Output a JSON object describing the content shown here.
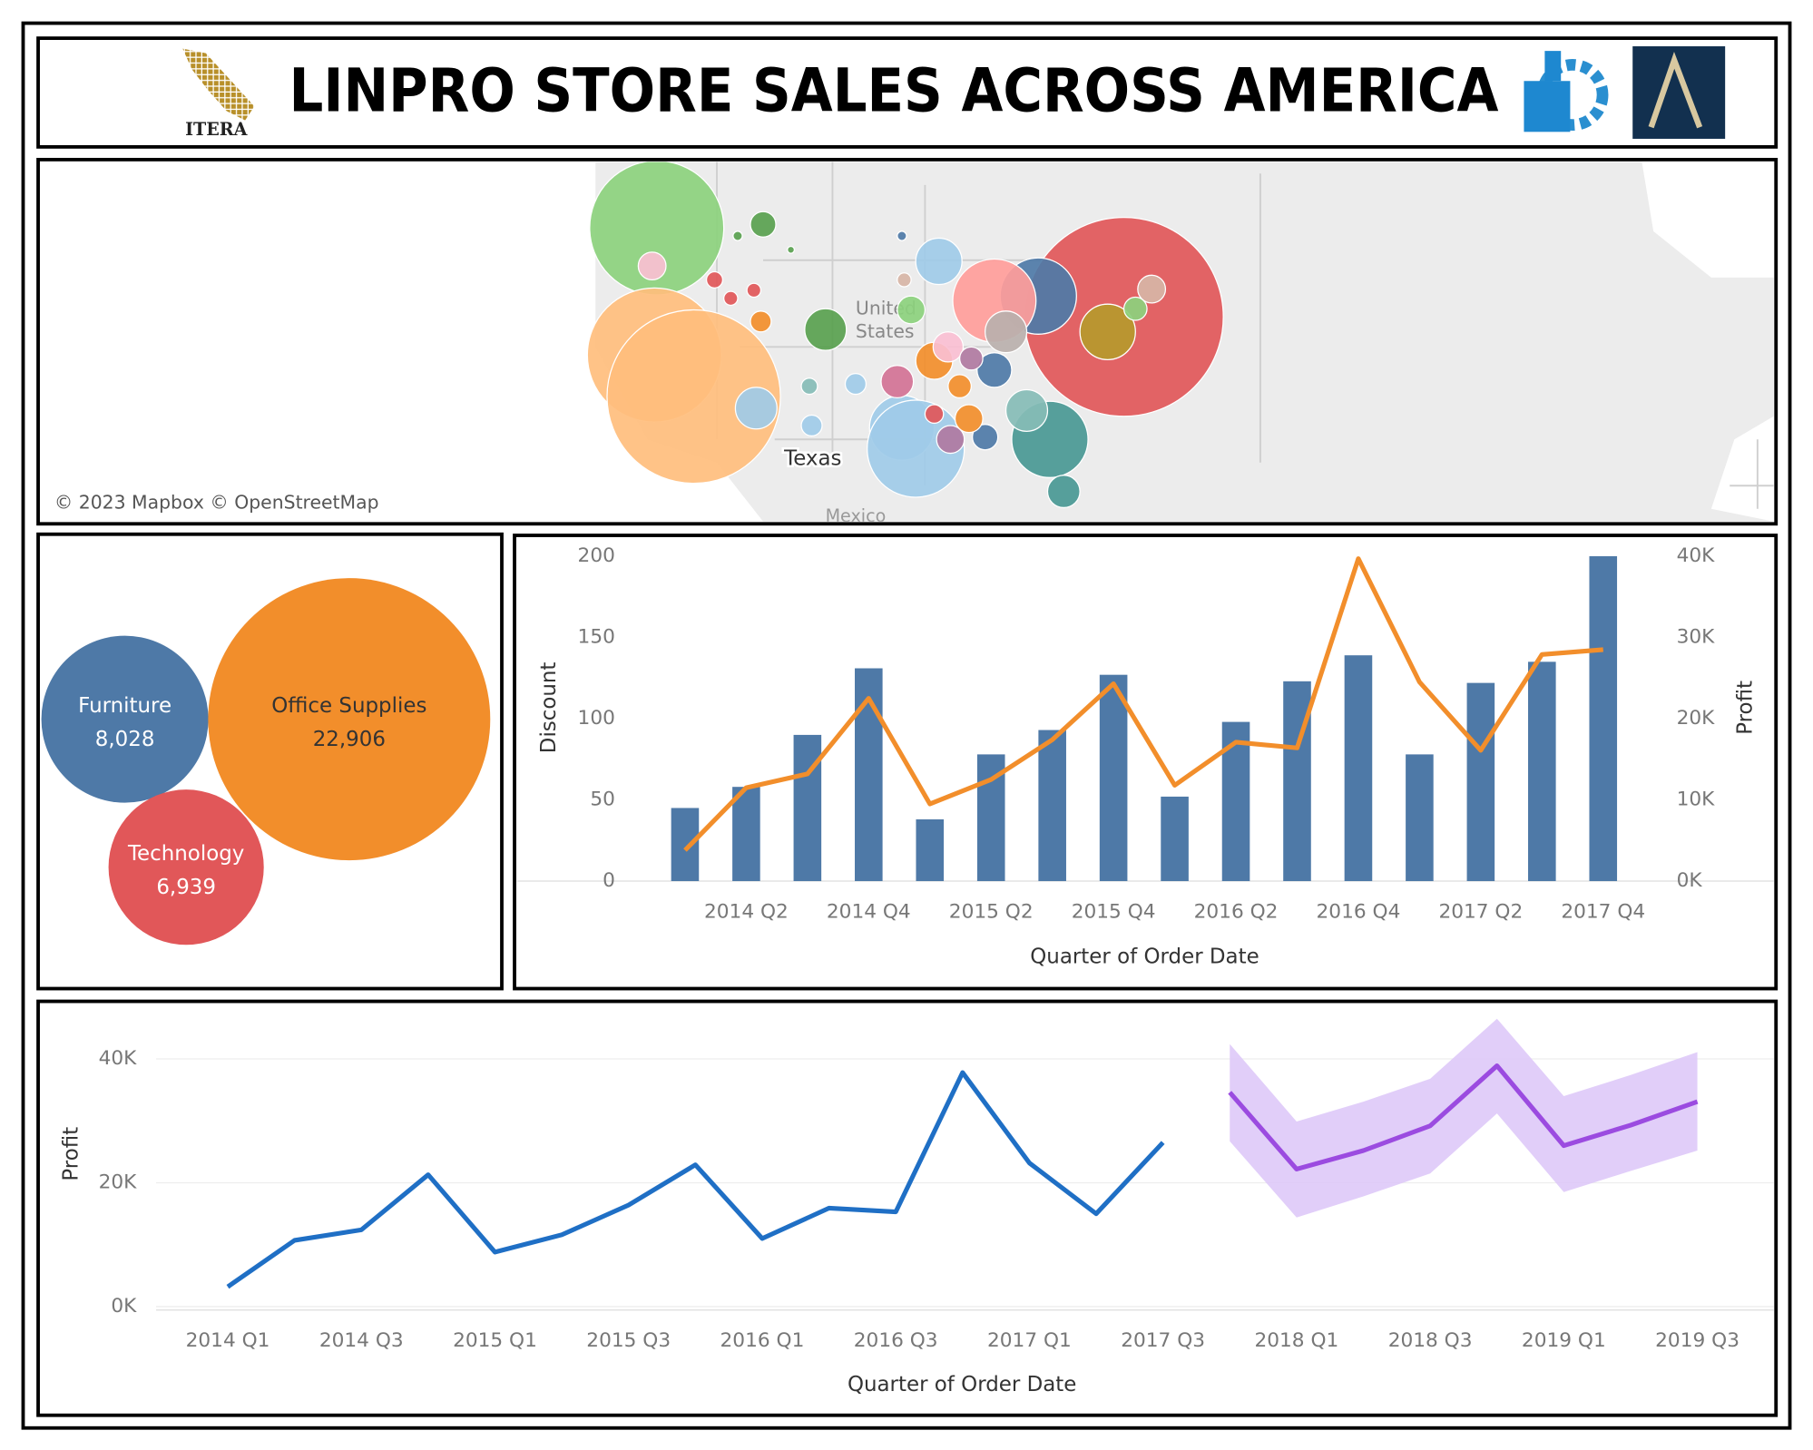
{
  "header": {
    "title": "LINPRO STORE SALES ACROSS AMERICA",
    "logo_text": "ITERA"
  },
  "map": {
    "labels": [
      "United",
      "States",
      "Texas",
      "Mexico"
    ],
    "attribution": "© 2023 Mapbox © OpenStreetMap"
  },
  "chart_data": [
    {
      "type": "packed_bubble",
      "categories": [
        "Furniture",
        "Office Supplies",
        "Technology"
      ],
      "values": [
        8028,
        22906,
        6939
      ],
      "value_labels": [
        "8,028",
        "22,906",
        "6,939"
      ],
      "colors": [
        "#4e79a7",
        "#f28e2b",
        "#e15759"
      ]
    },
    {
      "type": "bar_line",
      "x_label": "Quarter of Order Date",
      "y_label": "Discount",
      "y2_label": "Profit",
      "categories": [
        null,
        "2014 Q2",
        null,
        "2014 Q4",
        null,
        "2015 Q2",
        null,
        "2015 Q4",
        null,
        "2016 Q2",
        null,
        "2016 Q4",
        null,
        "2017 Q2",
        null,
        "2017 Q4"
      ],
      "series": [
        {
          "type": "bar",
          "color": "#4e79a7",
          "values": [
            45,
            58,
            90,
            131,
            38,
            78,
            93,
            127,
            52,
            98,
            123,
            139,
            78,
            122,
            135,
            200
          ]
        },
        {
          "type": "line",
          "axis": "y2",
          "color": "#f28e2b",
          "values": [
            3800,
            11500,
            13200,
            22500,
            9500,
            12500,
            17400,
            24300,
            11800,
            17100,
            16400,
            39700,
            24500,
            16100,
            27900,
            28500
          ]
        }
      ],
      "ylim": [
        0,
        205
      ],
      "yticks": [
        0,
        50,
        100,
        150,
        200
      ],
      "y2lim": [
        0,
        41000
      ],
      "y2ticks": [
        {
          "value": 0,
          "label": "0K"
        },
        {
          "value": 10000,
          "label": "10K"
        },
        {
          "value": 20000,
          "label": "20K"
        },
        {
          "value": 30000,
          "label": "30K"
        },
        {
          "value": 40000,
          "label": "40K"
        }
      ]
    },
    {
      "type": "line_forecast",
      "x_label": "Quarter of Order Date",
      "y_label": "Profit",
      "categories": [
        "2014 Q1",
        null,
        "2014 Q3",
        null,
        "2015 Q1",
        null,
        "2015 Q3",
        null,
        "2016 Q1",
        null,
        "2016 Q3",
        null,
        "2017 Q1",
        null,
        "2017 Q3",
        null,
        "2018 Q1",
        null,
        "2018 Q3",
        null,
        "2019 Q1",
        null,
        "2019 Q3"
      ],
      "series": [
        {
          "color": "#1f6fc5",
          "values": [
            3200,
            10700,
            12400,
            21300,
            8800,
            11600,
            16400,
            22900,
            11000,
            15900,
            15300,
            37800,
            23200,
            15000,
            26500,
            null,
            null,
            null,
            null,
            null,
            null,
            null,
            null
          ]
        },
        {
          "color": "#9b4be0",
          "values": [
            null,
            null,
            null,
            null,
            null,
            null,
            null,
            null,
            null,
            null,
            null,
            null,
            null,
            null,
            null,
            34600,
            22200,
            25200,
            29200,
            38900,
            26000,
            29300,
            33100
          ]
        }
      ],
      "band": {
        "color": "#dcc6f8",
        "upper": [
          null,
          null,
          null,
          null,
          null,
          null,
          null,
          null,
          null,
          null,
          null,
          null,
          null,
          null,
          null,
          42400,
          29900,
          33100,
          36800,
          46500,
          34000,
          37400,
          41100
        ],
        "lower": [
          null,
          null,
          null,
          null,
          null,
          null,
          null,
          null,
          null,
          null,
          null,
          null,
          null,
          null,
          null,
          26700,
          14400,
          17800,
          21500,
          31200,
          18500,
          21900,
          25200
        ]
      },
      "ylim": [
        0,
        48000
      ],
      "yticks": [
        {
          "value": 0,
          "label": "0K"
        },
        {
          "value": 20000,
          "label": "20K"
        },
        {
          "value": 40000,
          "label": "40K"
        }
      ],
      "grid": true
    }
  ]
}
